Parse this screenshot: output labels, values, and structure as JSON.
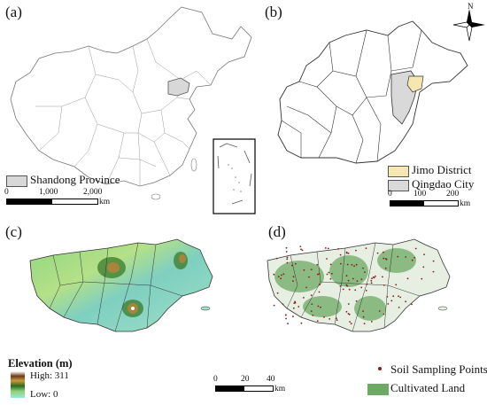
{
  "panels": {
    "a": {
      "label": "(a)",
      "legend": {
        "item": "Shandong Province",
        "color": "#d8d8d8"
      },
      "scale": {
        "ticks": [
          "0",
          "1,000",
          "2,000"
        ],
        "unit": "km"
      }
    },
    "b": {
      "label": "(b)",
      "north": "N",
      "legend": [
        {
          "item": "Jimo District",
          "color": "#f5e7b0"
        },
        {
          "item": "Qingdao City",
          "color": "#d9d9d9"
        }
      ],
      "scale": {
        "ticks": [
          "0",
          "100",
          "200"
        ],
        "unit": "km"
      }
    },
    "c": {
      "label": "(c)",
      "legend": {
        "title": "Elevation (m)",
        "high": "High: 311",
        "low": "Low: 0"
      },
      "scale": {
        "ticks": [
          "0",
          "20",
          "40"
        ],
        "unit": "km"
      }
    },
    "d": {
      "label": "(d)",
      "legend": [
        {
          "item": "Soil Sampling Points",
          "color": "#8b1a1a"
        },
        {
          "item": "Cultivated Land",
          "color": "#6daa64"
        }
      ]
    }
  }
}
